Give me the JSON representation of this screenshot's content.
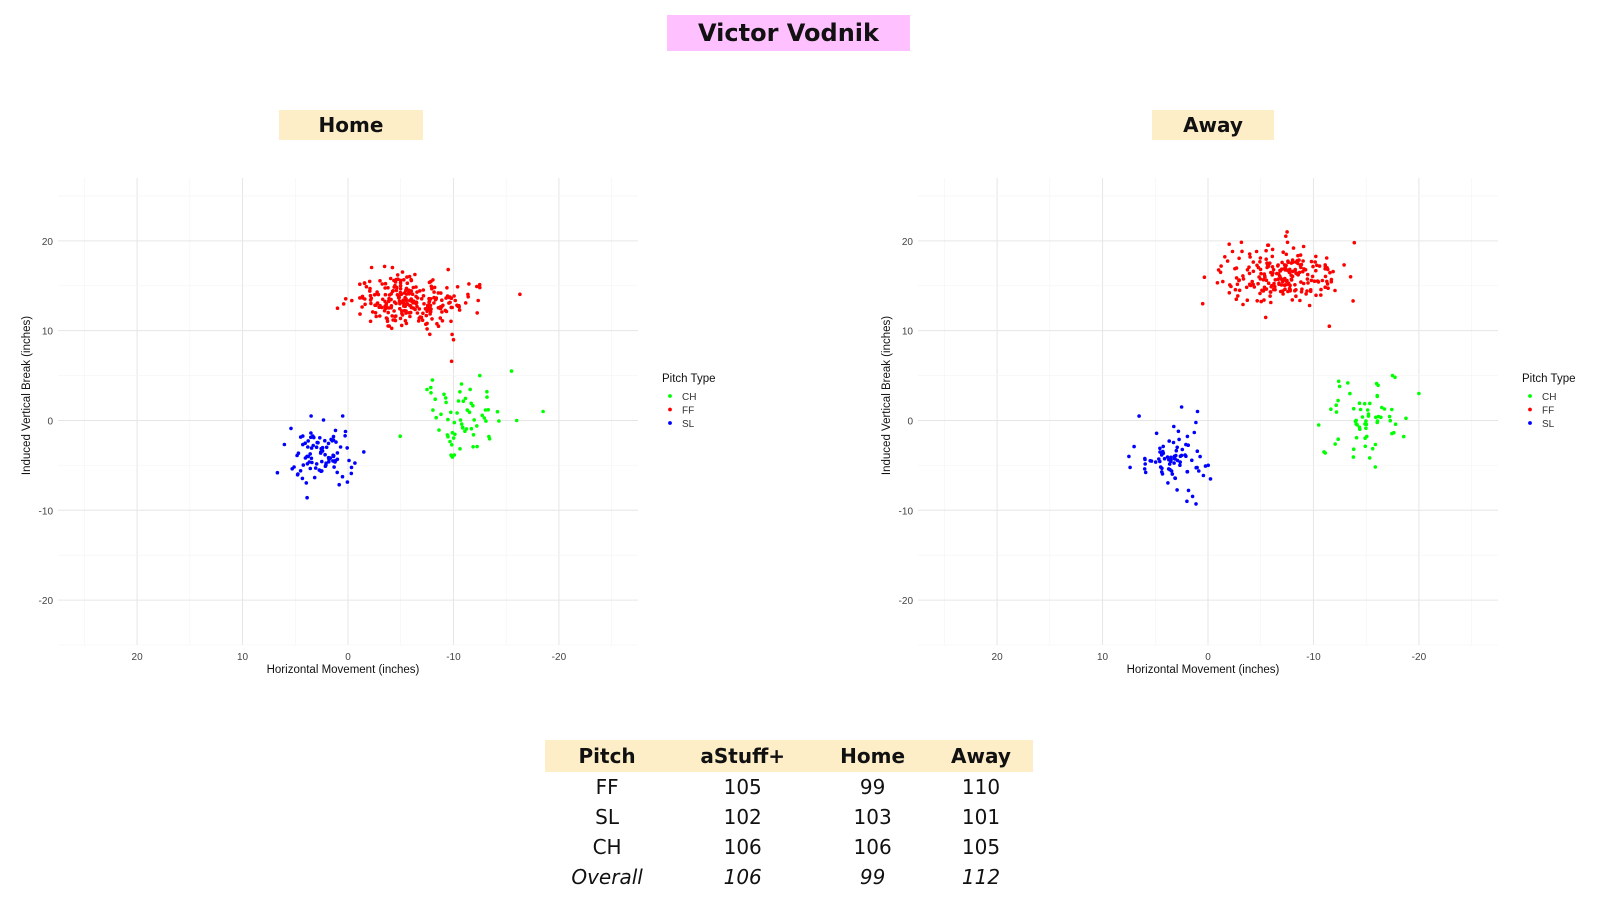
{
  "title": "Victor Vodnik",
  "panels": {
    "home": {
      "title": "Home"
    },
    "away": {
      "title": "Away"
    }
  },
  "table": {
    "headers": [
      "Pitch",
      "aStuff+",
      "Home",
      "Away"
    ],
    "rows": [
      [
        "FF",
        "105",
        "99",
        "110"
      ],
      [
        "SL",
        "102",
        "103",
        "101"
      ],
      [
        "CH",
        "106",
        "106",
        "105"
      ]
    ],
    "overall": [
      "Overall",
      "106",
      "99",
      "112"
    ]
  },
  "chart_data": [
    {
      "type": "scatter",
      "title": "Home",
      "xlabel": "Horizontal Movement (inches)",
      "ylabel": "Induced Vertical Break (inches)",
      "xlim": [
        27.5,
        -27.5
      ],
      "ylim": [
        -25,
        27
      ],
      "xticks": [
        20,
        10,
        0,
        -10,
        -20
      ],
      "yticks": [
        20,
        10,
        0,
        -10,
        -20
      ],
      "xtick_labels": [
        "20",
        "10",
        "0",
        "-10",
        "-20"
      ],
      "ytick_labels": [
        "20",
        "10",
        "0",
        "-10",
        "-20"
      ],
      "grid": true,
      "legend": {
        "title": "Pitch Type",
        "placement": "right"
      },
      "series": [
        {
          "name": "CH",
          "color": "#00ff00",
          "cx": -10.5,
          "cy": 0,
          "sx": 2.0,
          "sy": 2.4,
          "n": 60,
          "outliers": [
            [
              -15.5,
              5.5
            ],
            [
              -18.5,
              1
            ],
            [
              -16,
              0
            ],
            [
              -8,
              4.5
            ],
            [
              -12.5,
              5
            ]
          ]
        },
        {
          "name": "FF",
          "color": "#ff0000",
          "cx": -5.8,
          "cy": 13.3,
          "sx": 2.6,
          "sy": 1.6,
          "n": 260,
          "outliers": [
            [
              1,
              12.5
            ],
            [
              -12.5,
              14.8
            ],
            [
              -10,
              9
            ],
            [
              -9.5,
              16.8
            ]
          ]
        },
        {
          "name": "SL",
          "color": "#0000ff",
          "cx": 2.5,
          "cy": -4,
          "sx": 1.5,
          "sy": 1.6,
          "n": 90,
          "outliers": [
            [
              -1.5,
              -3.5
            ],
            [
              0.5,
              0.5
            ],
            [
              3.5,
              0.5
            ]
          ]
        }
      ]
    },
    {
      "type": "scatter",
      "title": "Away",
      "xlabel": "Horizontal Movement (inches)",
      "ylabel": "Induced Vertical Break (inches)",
      "xlim": [
        27.5,
        -27.5
      ],
      "ylim": [
        -25,
        27
      ],
      "xticks": [
        20,
        10,
        0,
        -10,
        -20
      ],
      "yticks": [
        20,
        10,
        0,
        -10,
        -20
      ],
      "xtick_labels": [
        "20",
        "10",
        "0",
        "-10",
        "-20"
      ],
      "ytick_labels": [
        "20",
        "10",
        "0",
        "-10",
        "-20"
      ],
      "grid": true,
      "legend": {
        "title": "Pitch Type",
        "placement": "right"
      },
      "series": [
        {
          "name": "CH",
          "color": "#00ff00",
          "cx": -15,
          "cy": 0,
          "sx": 1.8,
          "sy": 2.0,
          "n": 60,
          "outliers": [
            [
              -20,
              3
            ],
            [
              -10.5,
              -0.5
            ],
            [
              -11,
              -3.5
            ],
            [
              -17.5,
              5
            ]
          ]
        },
        {
          "name": "FF",
          "color": "#ff0000",
          "cx": -7,
          "cy": 16,
          "sx": 2.6,
          "sy": 1.6,
          "n": 230,
          "outliers": [
            [
              0.5,
              13
            ],
            [
              -7.5,
              21
            ],
            [
              -11.5,
              10.5
            ],
            [
              -3,
              14.5
            ]
          ]
        },
        {
          "name": "SL",
          "color": "#0000ff",
          "cx": 3,
          "cy": -4.3,
          "sx": 1.7,
          "sy": 1.9,
          "n": 80,
          "outliers": [
            [
              7.5,
              -4
            ],
            [
              2,
              -9
            ],
            [
              2.5,
              1.5
            ],
            [
              1,
              1
            ]
          ]
        }
      ]
    }
  ]
}
